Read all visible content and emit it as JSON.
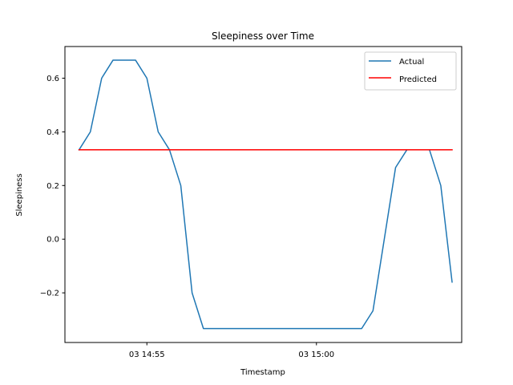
{
  "chart_data": {
    "type": "line",
    "title": "Sleepiness over Time",
    "xlabel": "Timestamp",
    "ylabel": "Sleepiness",
    "x_ticks": [
      {
        "time": "14:55",
        "label": "03 14:55"
      },
      {
        "time": "15:00",
        "label": "03 15:00"
      }
    ],
    "y_ticks": [
      {
        "value": -0.2,
        "label": "−0.2"
      },
      {
        "value": 0.0,
        "label": "0.0"
      },
      {
        "value": 0.2,
        "label": "0.2"
      },
      {
        "value": 0.4,
        "label": "0.4"
      },
      {
        "value": 0.6,
        "label": "0.6"
      }
    ],
    "xlim": [
      "14:52:35",
      "15:04:17"
    ],
    "ylim": [
      -0.385,
      0.718
    ],
    "grid": false,
    "legend_position": "top-right",
    "series": [
      {
        "name": "Actual",
        "color": "#1f77b4",
        "points": [
          {
            "time": "14:53:00",
            "value": 0.333
          },
          {
            "time": "14:53:20",
            "value": 0.4
          },
          {
            "time": "14:53:40",
            "value": 0.6
          },
          {
            "time": "14:54:00",
            "value": 0.667
          },
          {
            "time": "14:54:20",
            "value": 0.667
          },
          {
            "time": "14:54:40",
            "value": 0.667
          },
          {
            "time": "14:55:00",
            "value": 0.6
          },
          {
            "time": "14:55:20",
            "value": 0.4
          },
          {
            "time": "14:55:40",
            "value": 0.333
          },
          {
            "time": "14:56:00",
            "value": 0.2
          },
          {
            "time": "14:56:20",
            "value": -0.2
          },
          {
            "time": "14:56:40",
            "value": -0.333
          },
          {
            "time": "14:57:00",
            "value": -0.333
          },
          {
            "time": "14:57:20",
            "value": -0.333
          },
          {
            "time": "14:57:40",
            "value": -0.333
          },
          {
            "time": "14:58:00",
            "value": -0.333
          },
          {
            "time": "14:58:20",
            "value": -0.333
          },
          {
            "time": "14:58:40",
            "value": -0.333
          },
          {
            "time": "14:59:00",
            "value": -0.333
          },
          {
            "time": "14:59:20",
            "value": -0.333
          },
          {
            "time": "14:59:40",
            "value": -0.333
          },
          {
            "time": "15:00:00",
            "value": -0.333
          },
          {
            "time": "15:00:20",
            "value": -0.333
          },
          {
            "time": "15:00:40",
            "value": -0.333
          },
          {
            "time": "15:01:00",
            "value": -0.333
          },
          {
            "time": "15:01:20",
            "value": -0.333
          },
          {
            "time": "15:01:40",
            "value": -0.267
          },
          {
            "time": "15:02:00",
            "value": 0.0
          },
          {
            "time": "15:02:20",
            "value": 0.267
          },
          {
            "time": "15:02:40",
            "value": 0.333
          },
          {
            "time": "15:03:00",
            "value": 0.333
          },
          {
            "time": "15:03:20",
            "value": 0.333
          },
          {
            "time": "15:03:40",
            "value": 0.2
          },
          {
            "time": "15:04:00",
            "value": -0.16
          }
        ]
      },
      {
        "name": "Predicted",
        "color": "#ff0000",
        "points": [
          {
            "time": "14:53:00",
            "value": 0.333
          },
          {
            "time": "15:04:00",
            "value": 0.333
          }
        ]
      }
    ]
  }
}
